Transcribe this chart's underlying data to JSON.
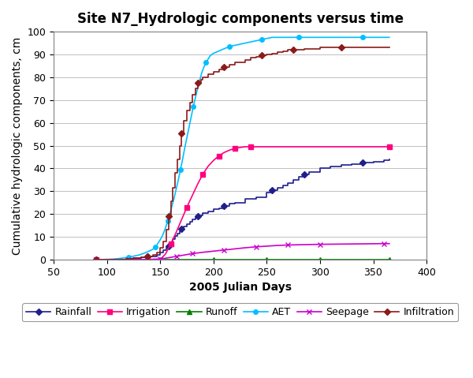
{
  "title": "Site N7_Hydrologic components versus time",
  "xlabel": "2005 Julian Days",
  "ylabel": "Cumulative hydrologic components, cm",
  "xlim": [
    50,
    400
  ],
  "ylim": [
    0,
    100
  ],
  "xticks": [
    50,
    100,
    150,
    200,
    250,
    300,
    350,
    400
  ],
  "yticks": [
    0,
    10,
    20,
    30,
    40,
    50,
    60,
    70,
    80,
    90,
    100
  ],
  "series": {
    "Rainfall": {
      "color": "#1F1F8C",
      "marker": "D",
      "markersize": 4,
      "drawstyle": "steps-post",
      "x": [
        90,
        100,
        110,
        118,
        125,
        132,
        138,
        143,
        147,
        150,
        153,
        156,
        158,
        160,
        162,
        164,
        166,
        168,
        170,
        172,
        175,
        178,
        180,
        183,
        185,
        188,
        190,
        195,
        200,
        205,
        210,
        215,
        220,
        230,
        240,
        250,
        255,
        260,
        265,
        270,
        275,
        280,
        285,
        290,
        300,
        310,
        320,
        330,
        340,
        350,
        360,
        365
      ],
      "y": [
        0,
        0,
        0.1,
        0.3,
        0.6,
        0.9,
        1.2,
        1.5,
        2.0,
        3.0,
        4.0,
        5.0,
        6.0,
        7.5,
        9.0,
        10.5,
        11.5,
        12.5,
        13.5,
        14.5,
        15.5,
        16.5,
        17.5,
        18.5,
        19.0,
        19.5,
        20.5,
        21.0,
        22.0,
        22.5,
        23.5,
        24.5,
        25.0,
        26.5,
        27.5,
        29.5,
        30.5,
        31.5,
        32.5,
        33.5,
        35.0,
        36.5,
        37.5,
        38.5,
        40.0,
        41.0,
        41.5,
        42.0,
        42.5,
        43.0,
        43.5,
        44.0
      ]
    },
    "Irrigation": {
      "color": "#FF007F",
      "marker": "s",
      "markersize": 4,
      "drawstyle": "default",
      "x": [
        90,
        150,
        155,
        160,
        165,
        170,
        175,
        180,
        185,
        190,
        195,
        200,
        205,
        210,
        215,
        220,
        225,
        230,
        235,
        240,
        245,
        365
      ],
      "y": [
        0,
        0,
        2.5,
        7.0,
        12.0,
        17.5,
        23.0,
        28.0,
        33.0,
        37.5,
        41.0,
        43.5,
        45.5,
        47.0,
        48.0,
        48.8,
        49.2,
        49.5,
        49.5,
        49.5,
        49.5,
        49.5
      ]
    },
    "Runoff": {
      "color": "#008000",
      "marker": "^",
      "markersize": 4,
      "drawstyle": "default",
      "x": [
        90,
        150,
        200,
        250,
        300,
        365
      ],
      "y": [
        0,
        0,
        0,
        0,
        0,
        0
      ]
    },
    "AET": {
      "color": "#00BFFF",
      "marker": "o",
      "markersize": 4,
      "drawstyle": "default",
      "x": [
        90,
        95,
        100,
        105,
        110,
        115,
        120,
        125,
        130,
        135,
        140,
        143,
        145,
        147,
        149,
        151,
        153,
        155,
        157,
        159,
        161,
        163,
        165,
        167,
        169,
        171,
        173,
        175,
        177,
        179,
        181,
        183,
        185,
        187,
        189,
        191,
        193,
        195,
        197,
        200,
        205,
        210,
        215,
        220,
        225,
        230,
        235,
        240,
        245,
        250,
        255,
        260,
        265,
        270,
        280,
        290,
        300,
        310,
        320,
        330,
        340,
        350,
        360,
        365
      ],
      "y": [
        0,
        0,
        0.1,
        0.2,
        0.4,
        0.7,
        1.0,
        1.5,
        2.0,
        2.8,
        3.8,
        4.5,
        5.5,
        6.5,
        8.0,
        9.5,
        11.5,
        14.0,
        17.0,
        20.0,
        23.5,
        27.0,
        31.0,
        35.0,
        39.5,
        44.0,
        49.0,
        53.5,
        58.0,
        62.5,
        67.0,
        71.0,
        75.0,
        78.5,
        82.0,
        84.5,
        86.5,
        88.0,
        89.5,
        90.5,
        91.5,
        92.5,
        93.5,
        94.0,
        94.5,
        95.0,
        95.5,
        96.0,
        96.5,
        97.0,
        97.5,
        97.5,
        97.5,
        97.5,
        97.5,
        97.5,
        97.5,
        97.5,
        97.5,
        97.5,
        97.5,
        97.5,
        97.5,
        97.5
      ]
    },
    "Seepage": {
      "color": "#CC00CC",
      "marker": "x",
      "markersize": 5,
      "drawstyle": "default",
      "x": [
        90,
        100,
        110,
        120,
        130,
        140,
        150,
        155,
        160,
        165,
        170,
        175,
        180,
        190,
        200,
        210,
        220,
        230,
        240,
        250,
        260,
        270,
        280,
        290,
        300,
        320,
        340,
        360,
        365
      ],
      "y": [
        0,
        0,
        0,
        0,
        0,
        0.1,
        0.3,
        0.6,
        1.0,
        1.4,
        1.8,
        2.2,
        2.6,
        3.2,
        3.7,
        4.2,
        4.7,
        5.2,
        5.6,
        5.9,
        6.2,
        6.4,
        6.5,
        6.6,
        6.7,
        6.8,
        6.9,
        7.0,
        7.0
      ]
    },
    "Infiltration": {
      "color": "#8B1A1A",
      "marker": "D",
      "markersize": 4,
      "drawstyle": "steps-post",
      "x": [
        90,
        100,
        110,
        118,
        125,
        132,
        138,
        143,
        147,
        150,
        153,
        156,
        158,
        160,
        162,
        164,
        166,
        168,
        170,
        172,
        175,
        178,
        180,
        183,
        185,
        188,
        190,
        195,
        200,
        205,
        210,
        215,
        220,
        230,
        235,
        240,
        245,
        250,
        255,
        260,
        265,
        270,
        275,
        280,
        285,
        290,
        300,
        310,
        320,
        330,
        340,
        350,
        360,
        365
      ],
      "y": [
        0,
        0,
        0.1,
        0.3,
        0.7,
        1.0,
        1.5,
        2.0,
        3.0,
        5.0,
        8.0,
        13.0,
        19.0,
        25.5,
        31.5,
        38.0,
        44.0,
        50.0,
        55.5,
        61.0,
        65.5,
        69.0,
        72.5,
        75.0,
        77.5,
        79.0,
        80.0,
        81.5,
        82.5,
        83.5,
        84.5,
        85.5,
        86.5,
        87.5,
        88.5,
        89.0,
        89.5,
        90.0,
        90.5,
        91.0,
        91.5,
        92.0,
        92.0,
        92.0,
        92.5,
        92.5,
        93.0,
        93.0,
        93.0,
        93.0,
        93.0,
        93.0,
        93.0,
        93.0
      ]
    }
  },
  "legend_order": [
    "Rainfall",
    "Irrigation",
    "Runoff",
    "AET",
    "Seepage",
    "Infiltration"
  ],
  "bg_color": "#FFFFFF",
  "plot_bg_color": "#FFFFFF",
  "grid_color": "#C0C0C0",
  "title_fontsize": 12,
  "axis_fontsize": 10,
  "tick_fontsize": 9,
  "legend_fontsize": 9
}
